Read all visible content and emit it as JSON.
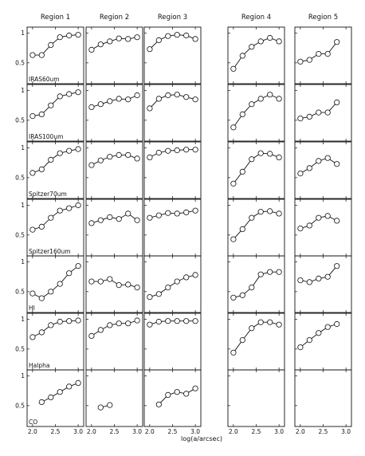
{
  "chart_data": {
    "type": "line",
    "layout": "grid of small multiples (7 rows x 5 columns)",
    "columns": [
      "Region 1",
      "Region 2",
      "Region 3",
      "Region 4",
      "Region 5"
    ],
    "rows": [
      "IRAS60um",
      "IRAS100um",
      "Spitzer70um",
      "Spitzer160um",
      "HI",
      "Halpha",
      "CO"
    ],
    "xlabel": "log(a/arcsec)",
    "xlim": [
      1.88,
      3.12
    ],
    "ylim": [
      0.15,
      1.1
    ],
    "xticks": [
      "2.0",
      "2.5",
      "3.0"
    ],
    "yticks": [
      "0.5",
      "1"
    ],
    "marker": "open circle",
    "grid": false,
    "panels": [
      [
        {
          "x": [
            2.0,
            2.2,
            2.4,
            2.6,
            2.8,
            3.0
          ],
          "y": [
            0.63,
            0.63,
            0.8,
            0.93,
            0.96,
            0.97
          ]
        },
        {
          "x": [
            2.0,
            2.2,
            2.4,
            2.6,
            2.8,
            3.0
          ],
          "y": [
            0.57,
            0.6,
            0.75,
            0.9,
            0.94,
            0.97
          ]
        },
        {
          "x": [
            2.0,
            2.2,
            2.4,
            2.6,
            2.8,
            3.0
          ],
          "y": [
            0.58,
            0.64,
            0.8,
            0.91,
            0.95,
            0.98
          ]
        },
        {
          "x": [
            2.0,
            2.2,
            2.4,
            2.6,
            2.8,
            3.0
          ],
          "y": [
            0.59,
            0.64,
            0.79,
            0.91,
            0.95,
            1.0
          ]
        },
        {
          "x": [
            2.0,
            2.2,
            2.4,
            2.6,
            2.8,
            3.0
          ],
          "y": [
            0.47,
            0.39,
            0.5,
            0.63,
            0.81,
            0.93
          ]
        },
        {
          "x": [
            2.0,
            2.2,
            2.4,
            2.6,
            2.8,
            3.0
          ],
          "y": [
            0.7,
            0.78,
            0.9,
            0.96,
            0.97,
            0.98
          ]
        },
        {
          "x": [
            2.2,
            2.4,
            2.6,
            2.8,
            3.0
          ],
          "y": [
            0.56,
            0.64,
            0.73,
            0.82,
            0.88
          ]
        }
      ],
      [
        {
          "x": [
            2.0,
            2.2,
            2.4,
            2.6,
            2.8,
            3.0
          ],
          "y": [
            0.72,
            0.81,
            0.86,
            0.91,
            0.9,
            0.93
          ]
        },
        {
          "x": [
            2.0,
            2.2,
            2.4,
            2.6,
            2.8,
            3.0
          ],
          "y": [
            0.72,
            0.77,
            0.82,
            0.86,
            0.85,
            0.92
          ]
        },
        {
          "x": [
            2.0,
            2.2,
            2.4,
            2.6,
            2.8,
            3.0
          ],
          "y": [
            0.71,
            0.79,
            0.85,
            0.88,
            0.88,
            0.82
          ]
        },
        {
          "x": [
            2.0,
            2.2,
            2.4,
            2.6,
            2.8,
            3.0
          ],
          "y": [
            0.7,
            0.75,
            0.8,
            0.77,
            0.86,
            0.75
          ]
        },
        {
          "x": [
            2.0,
            2.2,
            2.4,
            2.6,
            2.8,
            3.0
          ],
          "y": [
            0.67,
            0.67,
            0.71,
            0.61,
            0.62,
            0.57
          ]
        },
        {
          "x": [
            2.0,
            2.2,
            2.4,
            2.6,
            2.8,
            3.0
          ],
          "y": [
            0.72,
            0.82,
            0.9,
            0.93,
            0.93,
            0.98
          ]
        },
        {
          "x": [
            2.2,
            2.4
          ],
          "y": [
            0.47,
            0.51
          ]
        }
      ],
      [
        {
          "x": [
            2.0,
            2.2,
            2.4,
            2.6,
            2.8,
            3.0
          ],
          "y": [
            0.73,
            0.88,
            0.95,
            0.97,
            0.96,
            0.9
          ]
        },
        {
          "x": [
            2.0,
            2.2,
            2.4,
            2.6,
            2.8,
            3.0
          ],
          "y": [
            0.7,
            0.86,
            0.92,
            0.93,
            0.89,
            0.85
          ]
        },
        {
          "x": [
            2.0,
            2.2,
            2.4,
            2.6,
            2.8,
            3.0
          ],
          "y": [
            0.84,
            0.92,
            0.95,
            0.96,
            0.97,
            0.97
          ]
        },
        {
          "x": [
            2.0,
            2.2,
            2.4,
            2.6,
            2.8,
            3.0
          ],
          "y": [
            0.79,
            0.83,
            0.87,
            0.86,
            0.88,
            0.91
          ]
        },
        {
          "x": [
            2.0,
            2.2,
            2.4,
            2.6,
            2.8,
            3.0
          ],
          "y": [
            0.41,
            0.46,
            0.57,
            0.67,
            0.74,
            0.78
          ]
        },
        {
          "x": [
            2.0,
            2.2,
            2.4,
            2.6,
            2.8,
            3.0
          ],
          "y": [
            0.91,
            0.96,
            0.97,
            0.97,
            0.97,
            0.97
          ]
        },
        {
          "x": [
            2.2,
            2.4,
            2.6,
            2.8,
            3.0
          ],
          "y": [
            0.52,
            0.68,
            0.73,
            0.7,
            0.79
          ]
        }
      ],
      [
        {
          "x": [
            2.0,
            2.2,
            2.4,
            2.6,
            2.8,
            3.0
          ],
          "y": [
            0.4,
            0.62,
            0.77,
            0.86,
            0.92,
            0.86
          ]
        },
        {
          "x": [
            2.0,
            2.2,
            2.4,
            2.6,
            2.8,
            3.0
          ],
          "y": [
            0.38,
            0.6,
            0.77,
            0.86,
            0.93,
            0.86
          ]
        },
        {
          "x": [
            2.0,
            2.2,
            2.4,
            2.6,
            2.8,
            3.0
          ],
          "y": [
            0.4,
            0.6,
            0.81,
            0.91,
            0.9,
            0.84
          ]
        },
        {
          "x": [
            2.0,
            2.2,
            2.4,
            2.6,
            2.8,
            3.0
          ],
          "y": [
            0.43,
            0.6,
            0.79,
            0.89,
            0.9,
            0.86
          ]
        },
        {
          "x": [
            2.0,
            2.2,
            2.4,
            2.6,
            2.8,
            3.0
          ],
          "y": [
            0.4,
            0.44,
            0.57,
            0.79,
            0.83,
            0.83
          ]
        },
        {
          "x": [
            2.0,
            2.2,
            2.4,
            2.6,
            2.8,
            3.0
          ],
          "y": [
            0.44,
            0.65,
            0.85,
            0.95,
            0.95,
            0.91
          ]
        },
        {
          "x": [],
          "y": []
        }
      ],
      [
        {
          "x": [
            2.0,
            2.2,
            2.4,
            2.6,
            2.8
          ],
          "y": [
            0.52,
            0.55,
            0.65,
            0.65,
            0.85
          ]
        },
        {
          "x": [
            2.0,
            2.2,
            2.4,
            2.6,
            2.8
          ],
          "y": [
            0.53,
            0.56,
            0.63,
            0.63,
            0.8
          ]
        },
        {
          "x": [
            2.0,
            2.2,
            2.4,
            2.6,
            2.8
          ],
          "y": [
            0.57,
            0.66,
            0.78,
            0.83,
            0.73
          ]
        },
        {
          "x": [
            2.0,
            2.2,
            2.4,
            2.6,
            2.8
          ],
          "y": [
            0.61,
            0.66,
            0.79,
            0.82,
            0.74
          ]
        },
        {
          "x": [
            2.0,
            2.2,
            2.4,
            2.6,
            2.8
          ],
          "y": [
            0.69,
            0.66,
            0.72,
            0.75,
            0.93
          ]
        },
        {
          "x": [
            2.0,
            2.2,
            2.4,
            2.6,
            2.8
          ],
          "y": [
            0.53,
            0.65,
            0.77,
            0.87,
            0.92
          ]
        },
        {
          "x": [],
          "y": []
        }
      ]
    ]
  }
}
